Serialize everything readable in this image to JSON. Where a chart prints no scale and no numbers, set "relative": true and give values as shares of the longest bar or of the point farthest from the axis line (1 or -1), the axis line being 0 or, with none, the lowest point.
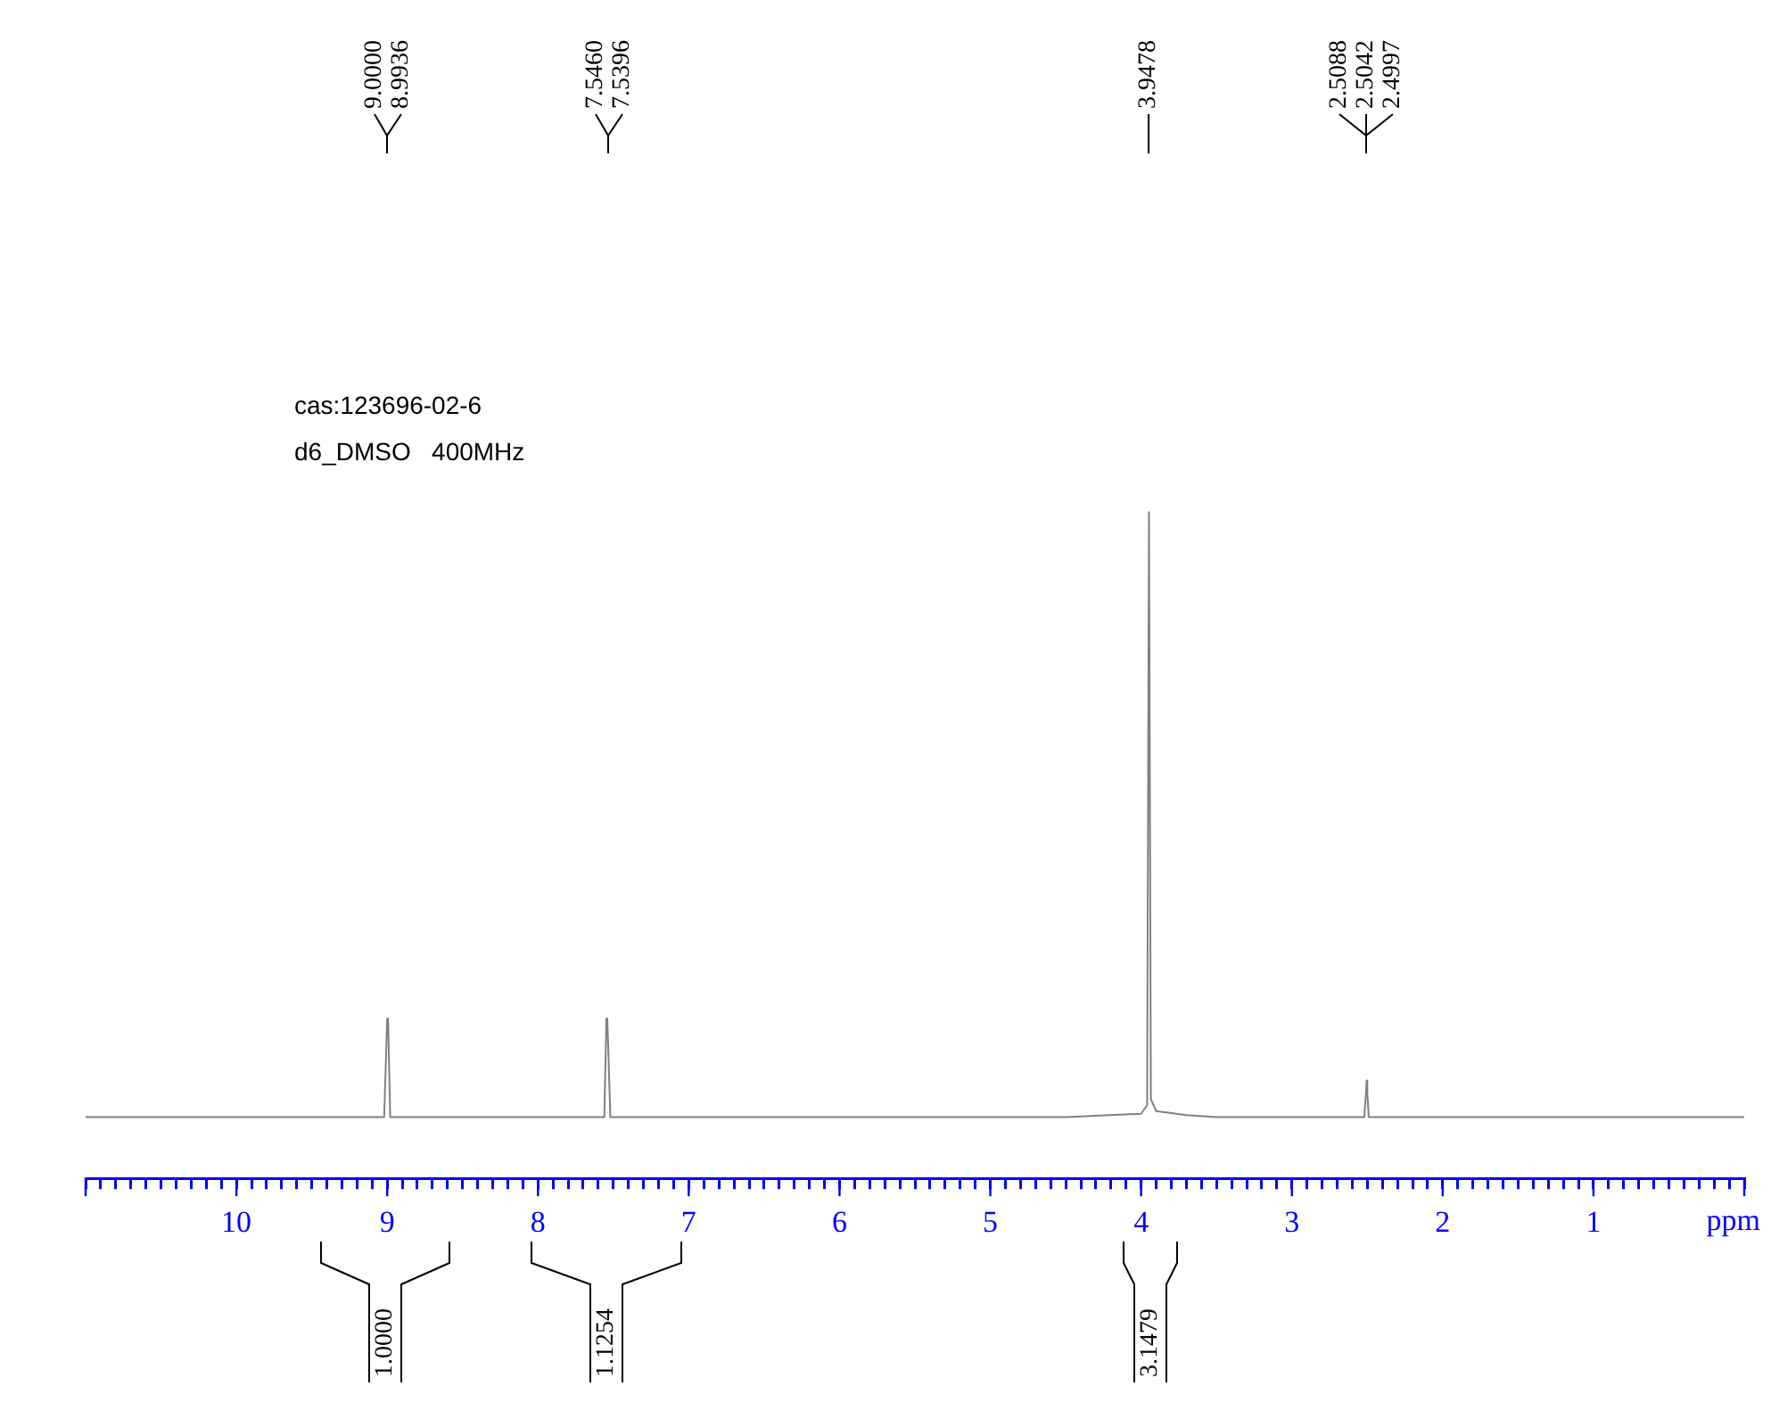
{
  "chart_data": {
    "type": "line",
    "relative": true,
    "xlabel": "ppm",
    "xlim": [
      11,
      0
    ],
    "xticks": [
      {
        "value": 11,
        "label": null
      },
      {
        "value": 10.9,
        "label": null
      },
      {
        "value": 10.8,
        "label": null
      },
      {
        "value": 10.7,
        "label": null
      },
      {
        "value": 10.6,
        "label": null
      },
      {
        "value": 10.5,
        "label": null
      },
      {
        "value": 10.4,
        "label": null
      },
      {
        "value": 10.3,
        "label": null
      },
      {
        "value": 10.2,
        "label": null
      },
      {
        "value": 10.1,
        "label": null
      },
      10,
      {
        "value": 9.9,
        "label": null
      },
      {
        "value": 9.8,
        "label": null
      },
      {
        "value": 9.7,
        "label": null
      },
      {
        "value": 9.6,
        "label": null
      },
      {
        "value": 9.5,
        "label": null
      },
      {
        "value": 9.4,
        "label": null
      },
      {
        "value": 9.3,
        "label": null
      },
      {
        "value": 9.2,
        "label": null
      },
      {
        "value": 9.1,
        "label": null
      },
      9,
      {
        "value": 8.9,
        "label": null
      },
      {
        "value": 8.8,
        "label": null
      },
      {
        "value": 8.7,
        "label": null
      },
      {
        "value": 8.6,
        "label": null
      },
      {
        "value": 8.5,
        "label": null
      },
      {
        "value": 8.4,
        "label": null
      },
      {
        "value": 8.3,
        "label": null
      },
      {
        "value": 8.2,
        "label": null
      },
      {
        "value": 8.1,
        "label": null
      },
      8,
      {
        "value": 7.9,
        "label": null
      },
      {
        "value": 7.8,
        "label": null
      },
      {
        "value": 7.7,
        "label": null
      },
      {
        "value": 7.6,
        "label": null
      },
      {
        "value": 7.5,
        "label": null
      },
      {
        "value": 7.4,
        "label": null
      },
      {
        "value": 7.3,
        "label": null
      },
      {
        "value": 7.2,
        "label": null
      },
      {
        "value": 7.1,
        "label": null
      },
      7,
      {
        "value": 6.9,
        "label": null
      },
      {
        "value": 6.8,
        "label": null
      },
      {
        "value": 6.7,
        "label": null
      },
      {
        "value": 6.6,
        "label": null
      },
      {
        "value": 6.5,
        "label": null
      },
      {
        "value": 6.4,
        "label": null
      },
      {
        "value": 6.3,
        "label": null
      },
      {
        "value": 6.2,
        "label": null
      },
      {
        "value": 6.1,
        "label": null
      },
      6,
      {
        "value": 5.9,
        "label": null
      },
      {
        "value": 5.8,
        "label": null
      },
      {
        "value": 5.7,
        "label": null
      },
      {
        "value": 5.6,
        "label": null
      },
      {
        "value": 5.5,
        "label": null
      },
      {
        "value": 5.4,
        "label": null
      },
      {
        "value": 5.3,
        "label": null
      },
      {
        "value": 5.2,
        "label": null
      },
      {
        "value": 5.1,
        "label": null
      },
      5,
      {
        "value": 4.9,
        "label": null
      },
      {
        "value": 4.8,
        "label": null
      },
      {
        "value": 4.7,
        "label": null
      },
      {
        "value": 4.6,
        "label": null
      },
      {
        "value": 4.5,
        "label": null
      },
      {
        "value": 4.4,
        "label": null
      },
      {
        "value": 4.3,
        "label": null
      },
      {
        "value": 4.2,
        "label": null
      },
      {
        "value": 4.1,
        "label": null
      },
      4,
      {
        "value": 3.9,
        "label": null
      },
      {
        "value": 3.8,
        "label": null
      },
      {
        "value": 3.7,
        "label": null
      },
      {
        "value": 3.6,
        "label": null
      },
      {
        "value": 3.5,
        "label": null
      },
      {
        "value": 3.4,
        "label": null
      },
      {
        "value": 3.3,
        "label": null
      },
      {
        "value": 3.2,
        "label": null
      },
      {
        "value": 3.1,
        "label": null
      },
      3,
      {
        "value": 2.9,
        "label": null
      },
      {
        "value": 2.8,
        "label": null
      },
      {
        "value": 2.7,
        "label": null
      },
      {
        "value": 2.6,
        "label": null
      },
      {
        "value": 2.5,
        "label": null
      },
      {
        "value": 2.4,
        "label": null
      },
      {
        "value": 2.3,
        "label": null
      },
      {
        "value": 2.2,
        "label": null
      },
      {
        "value": 2.1,
        "label": null
      },
      2,
      {
        "value": 1.9,
        "label": null
      },
      {
        "value": 1.8,
        "label": null
      },
      {
        "value": 1.7,
        "label": null
      },
      {
        "value": 1.6,
        "label": null
      },
      {
        "value": 1.5,
        "label": null
      },
      {
        "value": 1.4,
        "label": null
      },
      {
        "value": 1.3,
        "label": null
      },
      {
        "value": 1.2,
        "label": null
      },
      {
        "value": 1.1,
        "label": null
      },
      1,
      {
        "value": 0.9,
        "label": null
      },
      {
        "value": 0.8,
        "label": null
      },
      {
        "value": 0.7,
        "label": null
      },
      {
        "value": 0.6,
        "label": null
      },
      {
        "value": 0.5,
        "label": null
      },
      {
        "value": 0.4,
        "label": null
      },
      {
        "value": 0.3,
        "label": null
      },
      {
        "value": 0.2,
        "label": null
      },
      {
        "value": 0.1,
        "label": null
      },
      {
        "value": 0,
        "label": null
      }
    ],
    "x": [
      11,
      9.02,
      9.0,
      8.9936,
      8.98,
      7.56,
      7.546,
      7.5396,
      7.52,
      4.5,
      4.0,
      3.96,
      3.9478,
      3.935,
      3.9,
      3.7,
      3.5,
      2.52,
      2.5088,
      2.5042,
      2.4997,
      2.49,
      0
    ],
    "series": [
      {
        "color": "#808080",
        "values": [
          0.092,
          0.092,
          0.24,
          0.237,
          0.092,
          0.092,
          0.24,
          0.237,
          0.092,
          0.092,
          0.097,
          0.11,
          1,
          0.119,
          0.101,
          0.095,
          0.092,
          0.092,
          0.128,
          0.147,
          0.128,
          0.092,
          0.092
        ]
      }
    ],
    "annotations": [
      "cas:123696-02-6",
      "d6_DMSO   400MHz",
      "9.0000",
      "8.9936",
      "7.5460",
      "7.5396",
      "3.9478",
      "2.5088",
      "2.5042",
      "2.4997",
      "1.0000",
      "1.1254",
      "3.1479"
    ]
  }
}
